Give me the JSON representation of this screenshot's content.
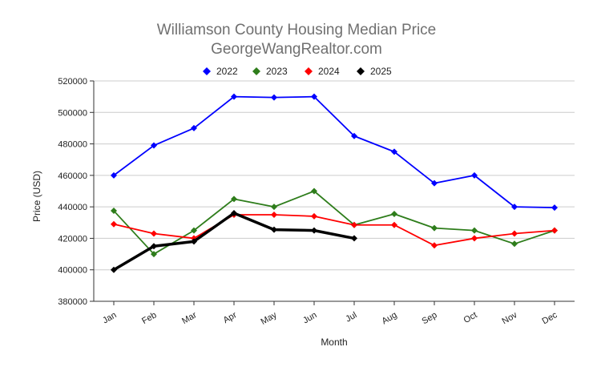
{
  "chart_data": {
    "type": "line",
    "title": "Williamson County Housing Median Price",
    "subtitle": "GeorgeWangRealtor.com",
    "xlabel": "Month",
    "ylabel": "Price (USD)",
    "categories": [
      "Jan",
      "Feb",
      "Mar",
      "Apr",
      "May",
      "Jun",
      "Jul",
      "Aug",
      "Sep",
      "Oct",
      "Nov",
      "Dec"
    ],
    "ylim": [
      380000,
      520000
    ],
    "yticks": [
      "380000",
      "400000",
      "420000",
      "440000",
      "460000",
      "480000",
      "500000",
      "520000"
    ],
    "grid": true,
    "legend_position": "top-center",
    "series": [
      {
        "name": "2022",
        "color": "#0000ff",
        "values": [
          460000,
          479000,
          490000,
          510000,
          509500,
          510000,
          485000,
          475000,
          455000,
          460000,
          440000,
          439500
        ]
      },
      {
        "name": "2023",
        "color": "#2e7d1b",
        "values": [
          437500,
          410000,
          425000,
          445000,
          440000,
          450000,
          428500,
          435500,
          426500,
          425000,
          416500,
          425000
        ]
      },
      {
        "name": "2024",
        "color": "#ff0000",
        "values": [
          429000,
          423000,
          420000,
          435000,
          435000,
          434000,
          428500,
          428500,
          415500,
          420000,
          423000,
          425000
        ]
      },
      {
        "name": "2025",
        "color": "#000000",
        "values": [
          400000,
          415000,
          418000,
          436000,
          425500,
          425000,
          420000,
          null,
          null,
          null,
          null,
          null
        ]
      }
    ]
  }
}
